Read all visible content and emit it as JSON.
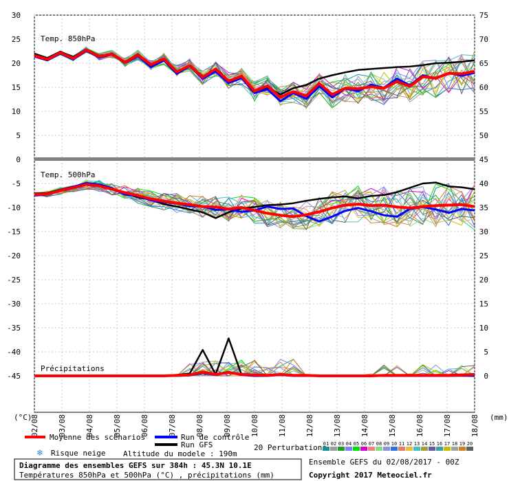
{
  "chart_data": {
    "type": "line",
    "title": "Diagramme des ensembles GEFS sur 384h : 45.3N 10.1E",
    "subtitle": "Températures 850hPa et 500hPa (°C) , précipitations (mm)",
    "run_info": "Ensemble GEFS du 02/08/2017 - 00Z",
    "copyright": "Copyright 2017 Meteociel.fr",
    "altitude": "Altitude du modele : 190m",
    "x_unit": "(mm)",
    "y_unit": "(°C)",
    "x_tick_labels": [
      "02/08",
      "03/08",
      "04/08",
      "05/08",
      "06/08",
      "07/08",
      "08/08",
      "09/08",
      "10/08",
      "11/08",
      "12/08",
      "13/08",
      "14/08",
      "15/08",
      "16/08",
      "17/08",
      "18/08"
    ],
    "panels": [
      {
        "label": "Temp. 850hPa",
        "left_axis": {
          "range": [
            0,
            30
          ],
          "ticks": [
            "0",
            "5",
            "10",
            "15",
            "20",
            "25",
            "30"
          ]
        },
        "right_axis": {
          "range": [
            45,
            75
          ],
          "ticks": [
            "45",
            "50",
            "55",
            "60",
            "65",
            "70",
            "75"
          ]
        },
        "series": [
          {
            "name": "Moyenne des scénarios",
            "color": "#ff0000",
            "values": [
              21.6,
              20.8,
              22.2,
              21,
              22.8,
              21.4,
              21.9,
              20.2,
              21.7,
              19.7,
              20.9,
              18.2,
              19.5,
              17.1,
              18.8,
              16.3,
              17.3,
              14.2,
              15.3,
              12.9,
              14.1,
              13.2,
              15.8,
              13.5,
              14.8,
              14.7,
              15.1,
              14.8,
              16.2,
              15.2,
              17.2,
              16.9,
              17.9,
              17.8,
              18.3
            ]
          },
          {
            "name": "Run de contrôle",
            "color": "#0000ff",
            "values": [
              21.4,
              20.6,
              22.0,
              20.8,
              22.6,
              21.2,
              21.8,
              20.1,
              21.5,
              19.2,
              20.6,
              17.8,
              19.4,
              16.8,
              18.3,
              15.9,
              16.9,
              13.8,
              14.6,
              12.1,
              13.8,
              12.6,
              15.2,
              12.9,
              14.7,
              14.2,
              15.5,
              14.9,
              16.8,
              15.4,
              17.5,
              16.8,
              18.0,
              17.4,
              18.0
            ]
          },
          {
            "name": "Run GFS",
            "color": "#000000",
            "values": [
              22.0,
              21.1,
              22.4,
              21.3,
              22.9,
              21.5,
              22.0,
              20.3,
              21.9,
              19.6,
              20.8,
              18.0,
              19.4,
              17.0,
              18.6,
              16.0,
              17.1,
              14.0,
              15.0,
              13.5,
              14.8,
              15.5,
              16.8,
              17.5,
              18.1,
              18.6,
              18.8,
              19.0,
              19.2,
              19.3,
              19.6,
              20.0,
              20.1,
              20.3,
              20.6
            ]
          }
        ]
      },
      {
        "label": "Temp. 500hPa",
        "left_axis": {
          "range": [
            -45,
            0
          ],
          "ticks": [
            "0",
            "-5",
            "-10",
            "-15",
            "-20",
            "-25",
            "-30",
            "-35",
            "-40",
            "-45"
          ]
        },
        "right_axis": {
          "range": [
            0,
            45
          ],
          "ticks": [
            "0",
            "5",
            "10",
            "15",
            "20",
            "25",
            "30",
            "35",
            "40",
            "45"
          ]
        },
        "series": [
          {
            "name": "Moyenne des scénarios",
            "color": "#ff0000",
            "values": [
              -7.3,
              -7.2,
              -6.5,
              -5.9,
              -5.2,
              -5.5,
              -6.2,
              -6.9,
              -7.5,
              -8.2,
              -8.7,
              -9.1,
              -9.4,
              -9.8,
              -9.9,
              -10.3,
              -10.0,
              -10.6,
              -11.2,
              -11.6,
              -11.9,
              -11.5,
              -10.9,
              -10.1,
              -9.5,
              -9.3,
              -9.6,
              -9.5,
              -9.9,
              -10.1,
              -9.8,
              -9.6,
              -9.5,
              -9.4,
              -9.8
            ]
          },
          {
            "name": "Run de contrôle",
            "color": "#0000ff",
            "values": [
              -7.5,
              -7.3,
              -6.4,
              -5.7,
              -4.9,
              -5.2,
              -6.0,
              -7.3,
              -7.6,
              -8.5,
              -8.9,
              -9.2,
              -9.7,
              -9.8,
              -10.5,
              -10.4,
              -10.9,
              -10.6,
              -9.8,
              -10.3,
              -10.2,
              -11.8,
              -12.9,
              -11.9,
              -10.7,
              -10.1,
              -10.8,
              -11.6,
              -11.9,
              -10.3,
              -9.9,
              -10.4,
              -11.1,
              -10.3,
              -10.6
            ]
          },
          {
            "name": "Run GFS",
            "color": "#000000",
            "values": [
              -7.1,
              -7.0,
              -6.3,
              -5.7,
              -5.0,
              -5.4,
              -6.3,
              -7.0,
              -7.9,
              -8.4,
              -9.3,
              -9.8,
              -10.4,
              -11.0,
              -12.2,
              -11.0,
              -10.2,
              -9.9,
              -9.5,
              -9.4,
              -9.1,
              -8.6,
              -8.2,
              -7.9,
              -7.7,
              -8.1,
              -7.6,
              -7.4,
              -6.8,
              -5.9,
              -5.0,
              -4.8,
              -5.6,
              -5.8,
              -6.2
            ]
          }
        ]
      },
      {
        "label": "Précipitations",
        "unit": "mm",
        "series": [
          {
            "name": "Moyenne des scénarios",
            "color": "#ff0000",
            "values": [
              0,
              0,
              0,
              0,
              0,
              0,
              0,
              0,
              0,
              0,
              0,
              0.1,
              0.2,
              0.8,
              0.3,
              0.7,
              0.3,
              0.2,
              0.1,
              0.3,
              0.1,
              0.1,
              0,
              0,
              0,
              0,
              0,
              0.1,
              0.1,
              0.1,
              0.1,
              0.1,
              0.1,
              0.2,
              0.3
            ]
          },
          {
            "name": "Run de contrôle",
            "color": "#0000ff",
            "values": [
              0,
              0,
              0,
              0,
              0,
              0,
              0,
              0,
              0,
              0,
              0,
              0,
              0.1,
              0.6,
              0.2,
              0.8,
              0.2,
              0,
              0,
              0.2,
              0,
              0,
              0,
              0,
              0,
              0,
              0,
              0,
              0,
              0,
              0,
              0,
              0,
              0.1,
              0
            ]
          },
          {
            "name": "Run GFS",
            "color": "#000000",
            "values": [
              0,
              0,
              0,
              0,
              0,
              0,
              0,
              0,
              0,
              0,
              0,
              0.2,
              0.5,
              5.4,
              0.3,
              7.8,
              0.2,
              0,
              0,
              0.4,
              0,
              0,
              0,
              0,
              0,
              0,
              0,
              0,
              0,
              0,
              0,
              0,
              0,
              0,
              0
            ]
          }
        ]
      }
    ],
    "legend": {
      "mean": "Moyenne des scénarios",
      "control": "Run de contrôle",
      "gfs": "Run GFS",
      "snow": "Risque neige",
      "perturbations": "20 Perturbations",
      "perturbation_ids": [
        "01",
        "02",
        "03",
        "04",
        "05",
        "06",
        "07",
        "08",
        "09",
        "10",
        "11",
        "12",
        "13",
        "14",
        "15",
        "16",
        "17",
        "18",
        "19",
        "20"
      ],
      "perturbation_colors": [
        "#1a8f8f",
        "#9c9c9c",
        "#20a020",
        "#8080ff",
        "#00e000",
        "#d000d0",
        "#f08080",
        "#80e080",
        "#9090e0",
        "#3070e0",
        "#e08060",
        "#e0c040",
        "#40c0c0",
        "#a0a040",
        "#6060a0",
        "#40a0a0",
        "#c0c000",
        "#a0a0a0",
        "#d08020",
        "#606060"
      ]
    }
  }
}
